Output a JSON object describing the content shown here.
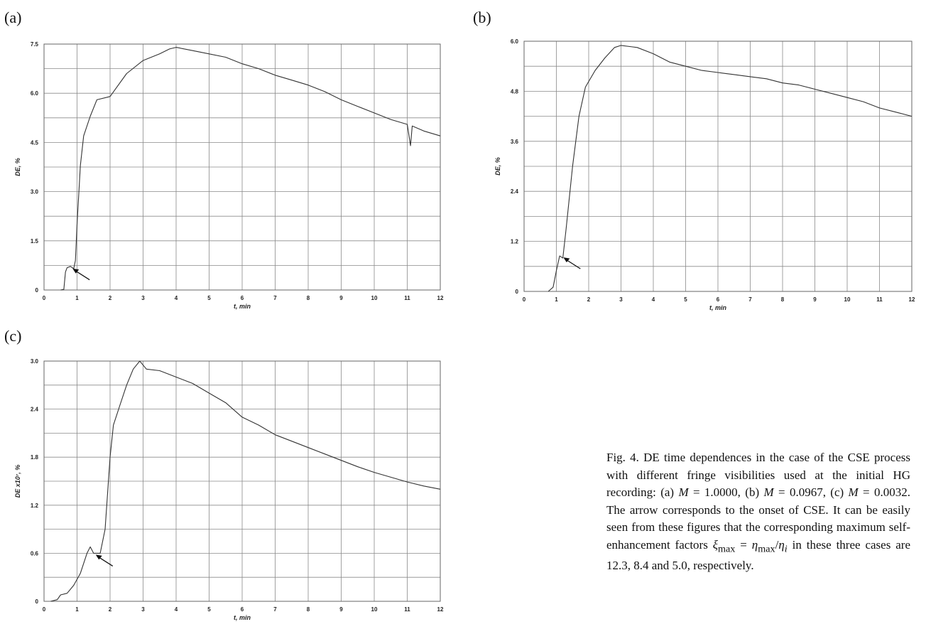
{
  "panels": [
    {
      "label": "(a)"
    },
    {
      "label": "(b)"
    },
    {
      "label": "(c)"
    }
  ],
  "caption": {
    "lead": "Fig. 4. DE time dependences in the case of the CSE process with different fringe visibilities used at the initial HG recording: (a) ",
    "m_sym": "M",
    "eq_a": " = 1.0000, (b) ",
    "eq_b": " = 0.0967, (c) ",
    "eq_c": " = 0.0032. The arrow corresponds to the onset of CSE. It can be easily seen from these figures that the corresponding maximum self-enhancement factors ",
    "xi": "ξ",
    "max_sub": "max",
    "eq_mid": " = ",
    "eta": "η",
    "slash": "/",
    "i_sub": "i",
    "tail": " in these three cases are 12.3, 8.4 and 5.0, respectively."
  },
  "chart_data": [
    {
      "type": "line",
      "ylabel": "DE, %",
      "xlabel": "t, min",
      "xlim": [
        0,
        12
      ],
      "ylim": [
        0,
        7.5
      ],
      "x_ticks": [
        "0",
        "1",
        "2",
        "3",
        "4",
        "5",
        "6",
        "7",
        "8",
        "9",
        "10",
        "11",
        "12"
      ],
      "y_ticks": [
        "0",
        "1.5",
        "3.0",
        "4.5",
        "6.0",
        "7.5"
      ],
      "grid": true,
      "arrow_at": [
        0.8,
        0.7
      ],
      "points": [
        [
          0.5,
          0
        ],
        [
          0.6,
          0.02
        ],
        [
          0.65,
          0.55
        ],
        [
          0.7,
          0.68
        ],
        [
          0.8,
          0.72
        ],
        [
          0.9,
          0.65
        ],
        [
          0.95,
          0.9
        ],
        [
          1.0,
          2.0
        ],
        [
          1.1,
          3.8
        ],
        [
          1.2,
          4.7
        ],
        [
          1.4,
          5.3
        ],
        [
          1.6,
          5.8
        ],
        [
          2.0,
          5.9
        ],
        [
          2.5,
          6.6
        ],
        [
          3.0,
          7.0
        ],
        [
          3.5,
          7.2
        ],
        [
          3.8,
          7.35
        ],
        [
          4.0,
          7.4
        ],
        [
          4.5,
          7.3
        ],
        [
          5.0,
          7.2
        ],
        [
          5.5,
          7.1
        ],
        [
          6.0,
          6.9
        ],
        [
          6.5,
          6.75
        ],
        [
          7.0,
          6.55
        ],
        [
          7.5,
          6.4
        ],
        [
          8.0,
          6.25
        ],
        [
          8.5,
          6.05
        ],
        [
          9.0,
          5.8
        ],
        [
          9.5,
          5.6
        ],
        [
          10.0,
          5.4
        ],
        [
          10.5,
          5.2
        ],
        [
          11.0,
          5.05
        ],
        [
          11.1,
          4.4
        ],
        [
          11.15,
          5.0
        ],
        [
          11.5,
          4.85
        ],
        [
          12.0,
          4.7
        ]
      ]
    },
    {
      "type": "line",
      "ylabel": "DE, %",
      "xlabel": "t, min",
      "xlim": [
        0,
        12
      ],
      "ylim": [
        0,
        6.0
      ],
      "x_ticks": [
        "0",
        "1",
        "2",
        "3",
        "4",
        "5",
        "6",
        "7",
        "8",
        "9",
        "10",
        "11",
        "12"
      ],
      "y_ticks": [
        "0",
        "1.2",
        "2.4",
        "3.6",
        "4.8",
        "6.0"
      ],
      "grid": true,
      "arrow_at": [
        1.15,
        0.85
      ],
      "points": [
        [
          0.75,
          0
        ],
        [
          0.9,
          0.1
        ],
        [
          1.0,
          0.5
        ],
        [
          1.1,
          0.85
        ],
        [
          1.2,
          0.8
        ],
        [
          1.3,
          1.5
        ],
        [
          1.5,
          3.0
        ],
        [
          1.7,
          4.2
        ],
        [
          1.9,
          4.9
        ],
        [
          2.2,
          5.3
        ],
        [
          2.5,
          5.6
        ],
        [
          2.8,
          5.85
        ],
        [
          3.0,
          5.9
        ],
        [
          3.5,
          5.85
        ],
        [
          4.0,
          5.7
        ],
        [
          4.5,
          5.5
        ],
        [
          5.0,
          5.4
        ],
        [
          5.5,
          5.3
        ],
        [
          6.0,
          5.25
        ],
        [
          6.5,
          5.2
        ],
        [
          7.0,
          5.15
        ],
        [
          7.5,
          5.1
        ],
        [
          8.0,
          5.0
        ],
        [
          8.5,
          4.95
        ],
        [
          9.0,
          4.85
        ],
        [
          9.5,
          4.75
        ],
        [
          10.0,
          4.65
        ],
        [
          10.5,
          4.55
        ],
        [
          11.0,
          4.4
        ],
        [
          11.5,
          4.3
        ],
        [
          12.0,
          4.2
        ]
      ]
    },
    {
      "type": "line",
      "ylabel": "DE x10⁷, %",
      "xlabel": "t, min",
      "xlim": [
        0,
        12
      ],
      "ylim": [
        0,
        3.0
      ],
      "x_ticks": [
        "0",
        "1",
        "2",
        "3",
        "4",
        "5",
        "6",
        "7",
        "8",
        "9",
        "10",
        "11",
        "12"
      ],
      "y_ticks": [
        "0",
        "0.6",
        "1.2",
        "1.8",
        "2.4",
        "3.0"
      ],
      "grid": true,
      "arrow_at": [
        1.5,
        0.6
      ],
      "points": [
        [
          0.2,
          0
        ],
        [
          0.4,
          0.02
        ],
        [
          0.5,
          0.08
        ],
        [
          0.7,
          0.1
        ],
        [
          0.9,
          0.2
        ],
        [
          1.1,
          0.35
        ],
        [
          1.3,
          0.6
        ],
        [
          1.4,
          0.68
        ],
        [
          1.5,
          0.6
        ],
        [
          1.7,
          0.6
        ],
        [
          1.85,
          0.9
        ],
        [
          2.0,
          1.8
        ],
        [
          2.1,
          2.2
        ],
        [
          2.3,
          2.45
        ],
        [
          2.5,
          2.7
        ],
        [
          2.7,
          2.9
        ],
        [
          2.9,
          3.0
        ],
        [
          3.1,
          2.9
        ],
        [
          3.5,
          2.88
        ],
        [
          4.0,
          2.8
        ],
        [
          4.5,
          2.72
        ],
        [
          5.0,
          2.6
        ],
        [
          5.5,
          2.48
        ],
        [
          6.0,
          2.3
        ],
        [
          6.5,
          2.2
        ],
        [
          7.0,
          2.08
        ],
        [
          7.5,
          2.0
        ],
        [
          8.0,
          1.92
        ],
        [
          8.5,
          1.84
        ],
        [
          9.0,
          1.76
        ],
        [
          9.5,
          1.68
        ],
        [
          10.0,
          1.61
        ],
        [
          10.5,
          1.55
        ],
        [
          11.0,
          1.49
        ],
        [
          11.5,
          1.44
        ],
        [
          12.0,
          1.4
        ]
      ]
    }
  ]
}
